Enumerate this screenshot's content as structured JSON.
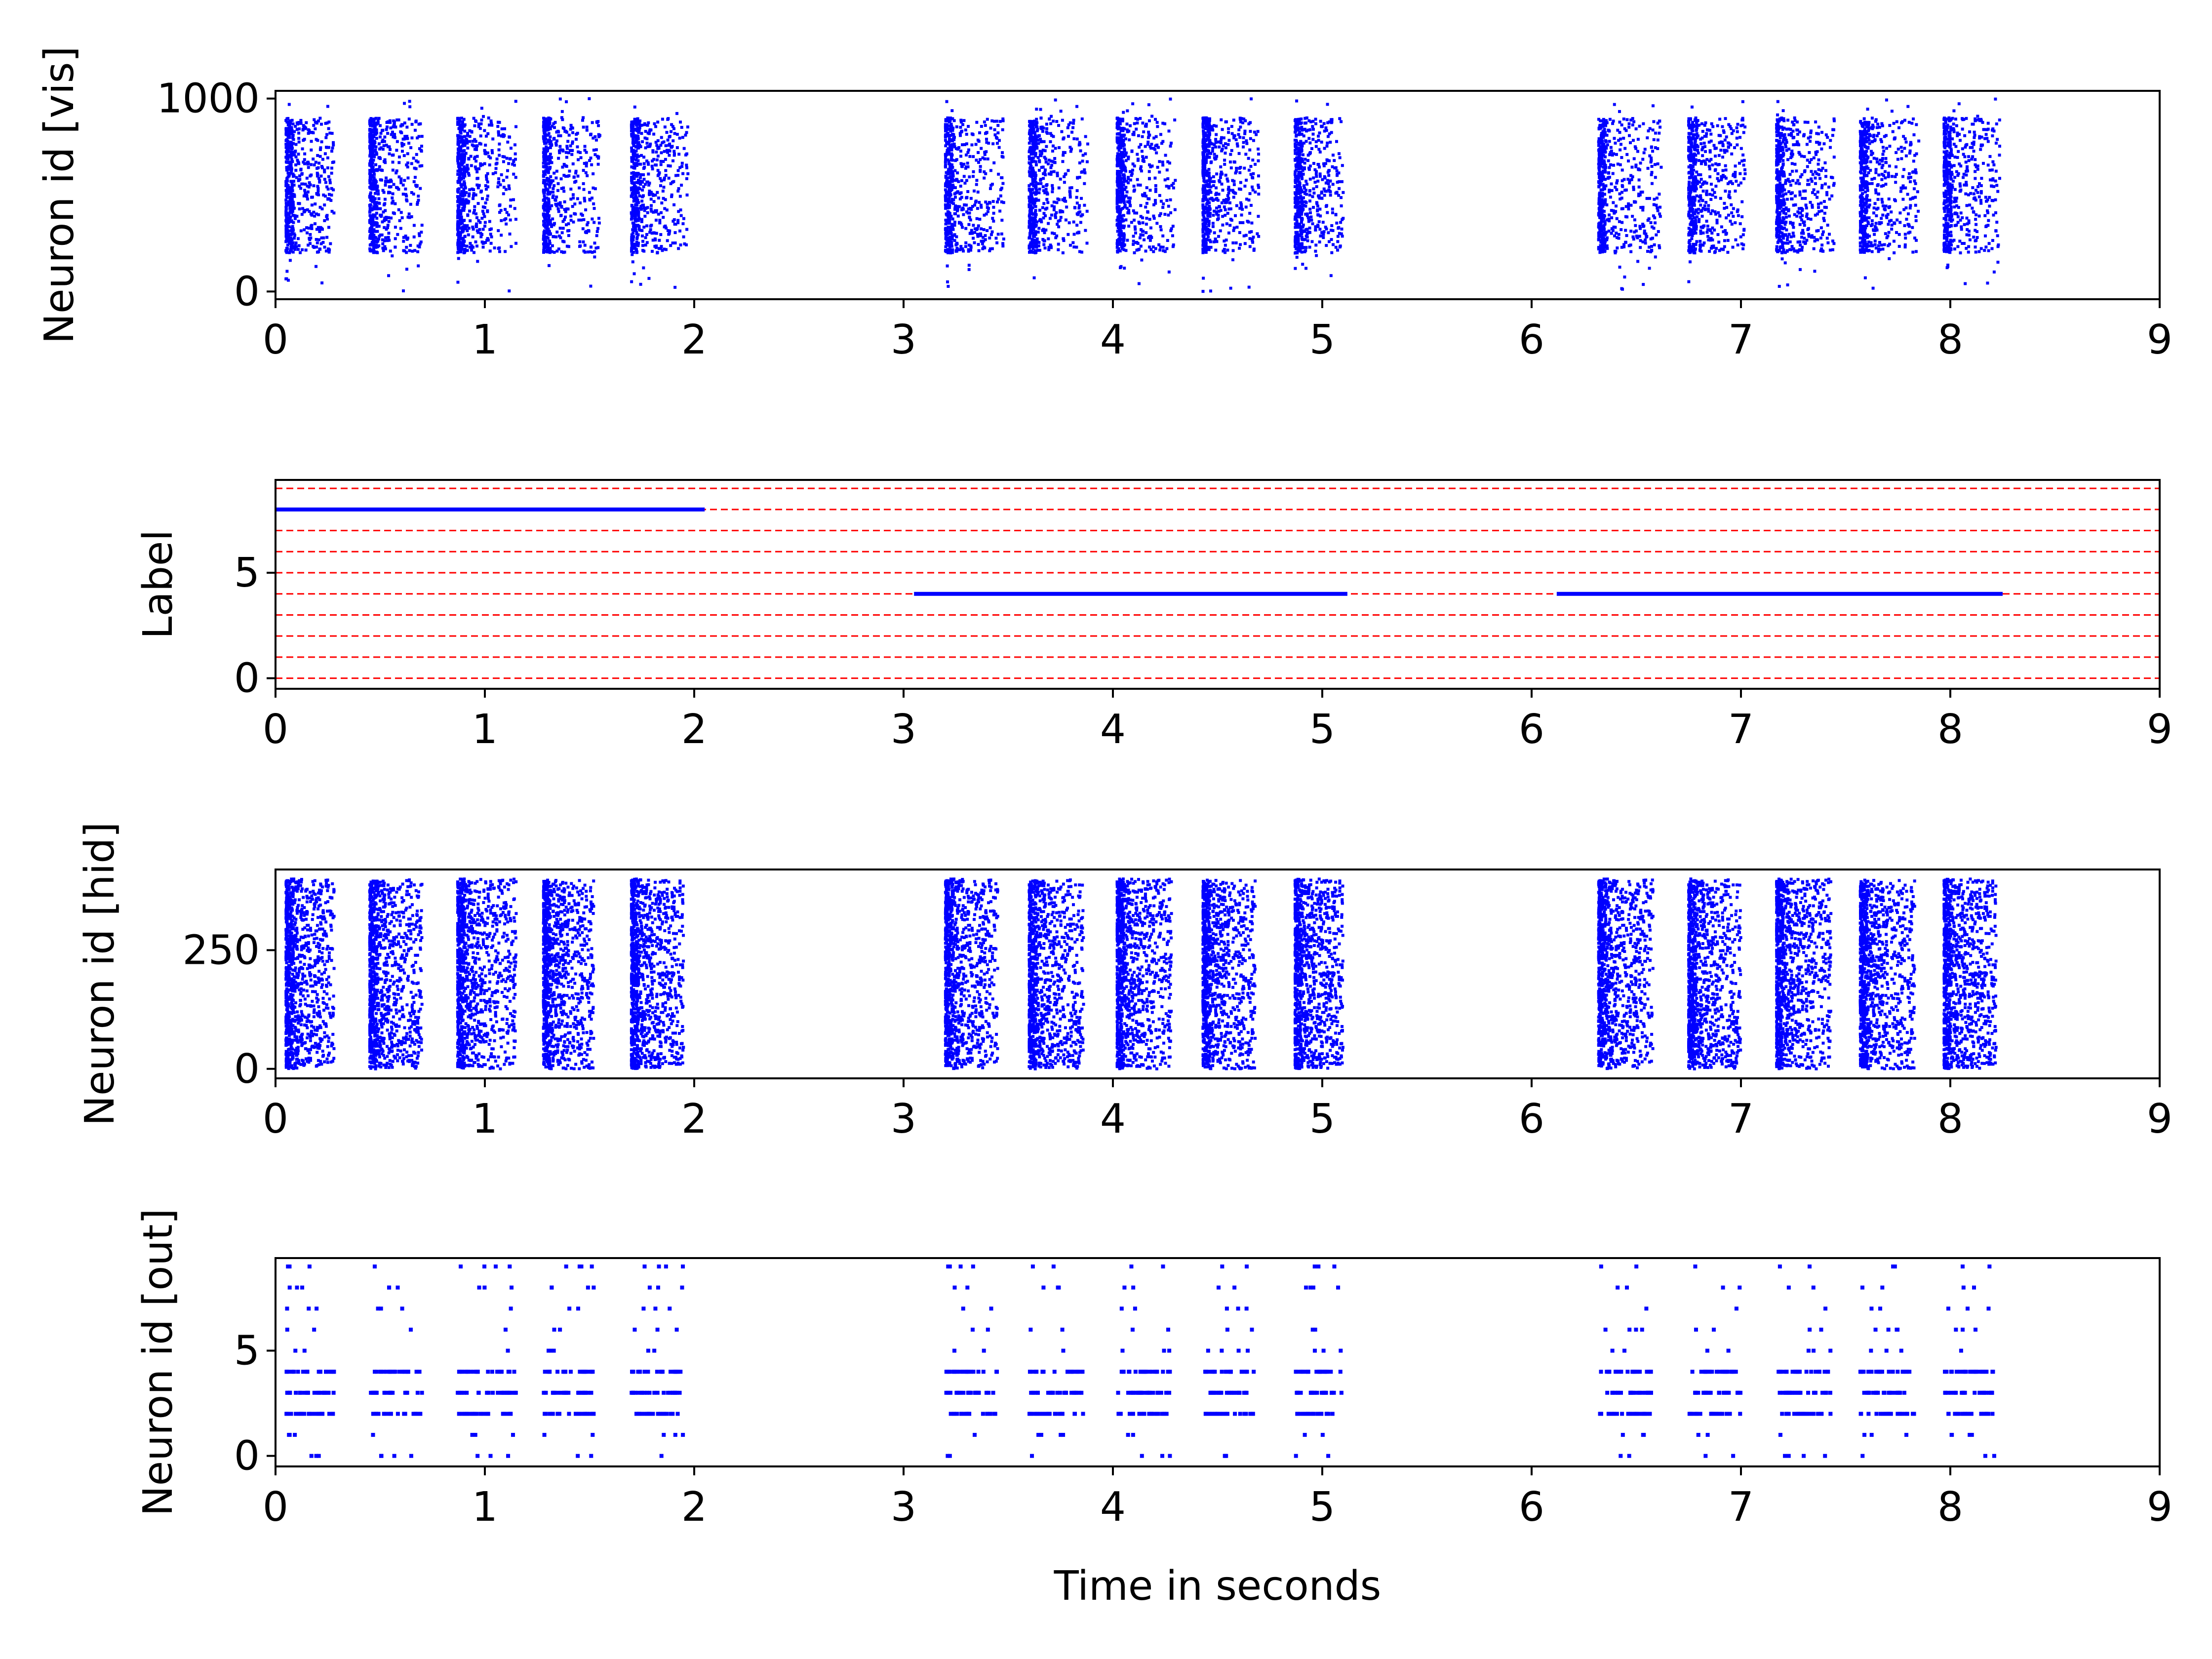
{
  "figure": {
    "xlabel": "Time in seconds",
    "colors": {
      "spike": "#0000ff",
      "label_line": "#0000ff",
      "class_grid": "#ff0000",
      "axes": "#000000",
      "background": "#ffffff"
    }
  },
  "chart_data": [
    {
      "id": "vis",
      "type": "scatter",
      "title": "",
      "ylabel": "Neuron id [vis]",
      "xlim": [
        0,
        9
      ],
      "ylim": [
        -40,
        1040
      ],
      "xticks": [
        0,
        1,
        2,
        3,
        4,
        5,
        6,
        7,
        8,
        9
      ],
      "yticks": [
        0,
        1000
      ],
      "grid": false,
      "marker": "dot",
      "series": [
        {
          "bursts": [
            {
              "start": 0.05,
              "end": 0.28,
              "ymin": 200,
              "ymax": 900
            },
            {
              "start": 0.45,
              "end": 0.7,
              "ymin": 200,
              "ymax": 900
            },
            {
              "start": 0.87,
              "end": 1.15,
              "ymin": 200,
              "ymax": 900
            },
            {
              "start": 1.28,
              "end": 1.55,
              "ymin": 200,
              "ymax": 900
            },
            {
              "start": 1.7,
              "end": 1.97,
              "ymin": 200,
              "ymax": 900
            },
            {
              "start": 3.2,
              "end": 3.48,
              "ymin": 200,
              "ymax": 900
            },
            {
              "start": 3.6,
              "end": 3.88,
              "ymin": 200,
              "ymax": 900
            },
            {
              "start": 4.02,
              "end": 4.3,
              "ymin": 200,
              "ymax": 900
            },
            {
              "start": 4.43,
              "end": 4.7,
              "ymin": 200,
              "ymax": 900
            },
            {
              "start": 4.87,
              "end": 5.1,
              "ymin": 200,
              "ymax": 900
            },
            {
              "start": 6.32,
              "end": 6.62,
              "ymin": 200,
              "ymax": 900
            },
            {
              "start": 6.75,
              "end": 7.02,
              "ymin": 200,
              "ymax": 900
            },
            {
              "start": 7.17,
              "end": 7.45,
              "ymin": 200,
              "ymax": 900
            },
            {
              "start": 7.57,
              "end": 7.85,
              "ymin": 200,
              "ymax": 900
            },
            {
              "start": 7.97,
              "end": 8.24,
              "ymin": 200,
              "ymax": 900
            }
          ]
        }
      ]
    },
    {
      "id": "label",
      "type": "line",
      "title": "",
      "ylabel": "Label",
      "xlim": [
        0,
        9
      ],
      "ylim": [
        -0.5,
        9.4
      ],
      "xticks": [
        0,
        1,
        2,
        3,
        4,
        5,
        6,
        7,
        8,
        9
      ],
      "yticks": [
        0,
        5
      ],
      "grid": false,
      "class_lines": [
        0,
        1,
        2,
        3,
        4,
        5,
        6,
        7,
        8,
        9
      ],
      "segments": [
        {
          "x_start": 0.0,
          "x_end": 2.05,
          "y": 8
        },
        {
          "x_start": 3.05,
          "x_end": 5.12,
          "y": 4
        },
        {
          "x_start": 6.12,
          "x_end": 8.25,
          "y": 4
        }
      ]
    },
    {
      "id": "hid",
      "type": "scatter",
      "title": "",
      "ylabel": "Neuron id [hid]",
      "xlim": [
        0,
        9
      ],
      "ylim": [
        -20,
        420
      ],
      "xticks": [
        0,
        1,
        2,
        3,
        4,
        5,
        6,
        7,
        8,
        9
      ],
      "yticks": [
        0,
        250
      ],
      "grid": false,
      "marker": "dot",
      "series": [
        {
          "bursts": [
            {
              "start": 0.05,
              "end": 0.28,
              "ymin": 0,
              "ymax": 400
            },
            {
              "start": 0.45,
              "end": 0.7,
              "ymin": 0,
              "ymax": 400
            },
            {
              "start": 0.87,
              "end": 1.15,
              "ymin": 0,
              "ymax": 400
            },
            {
              "start": 1.28,
              "end": 1.52,
              "ymin": 0,
              "ymax": 400
            },
            {
              "start": 1.7,
              "end": 1.95,
              "ymin": 0,
              "ymax": 400
            },
            {
              "start": 3.2,
              "end": 3.45,
              "ymin": 0,
              "ymax": 400
            },
            {
              "start": 3.6,
              "end": 3.86,
              "ymin": 0,
              "ymax": 400
            },
            {
              "start": 4.02,
              "end": 4.28,
              "ymin": 0,
              "ymax": 400
            },
            {
              "start": 4.43,
              "end": 4.68,
              "ymin": 0,
              "ymax": 400
            },
            {
              "start": 4.87,
              "end": 5.1,
              "ymin": 0,
              "ymax": 400
            },
            {
              "start": 6.32,
              "end": 6.58,
              "ymin": 0,
              "ymax": 400
            },
            {
              "start": 6.75,
              "end": 7.0,
              "ymin": 0,
              "ymax": 400
            },
            {
              "start": 7.17,
              "end": 7.43,
              "ymin": 0,
              "ymax": 400
            },
            {
              "start": 7.57,
              "end": 7.83,
              "ymin": 0,
              "ymax": 400
            },
            {
              "start": 7.97,
              "end": 8.22,
              "ymin": 0,
              "ymax": 400
            }
          ]
        }
      ]
    },
    {
      "id": "out",
      "type": "scatter",
      "title": "",
      "ylabel": "Neuron id [out]",
      "xlim": [
        0,
        9
      ],
      "ylim": [
        -0.5,
        9.4
      ],
      "xticks": [
        0,
        1,
        2,
        3,
        4,
        5,
        6,
        7,
        8,
        9
      ],
      "yticks": [
        0,
        5
      ],
      "grid": false,
      "marker": "dot",
      "series": [
        {
          "bursts": [
            {
              "start": 0.05,
              "end": 0.28
            },
            {
              "start": 0.45,
              "end": 0.7
            },
            {
              "start": 0.87,
              "end": 1.15
            },
            {
              "start": 1.28,
              "end": 1.52
            },
            {
              "start": 1.7,
              "end": 1.95
            },
            {
              "start": 3.2,
              "end": 3.45
            },
            {
              "start": 3.6,
              "end": 3.86
            },
            {
              "start": 4.02,
              "end": 4.28
            },
            {
              "start": 4.43,
              "end": 4.68
            },
            {
              "start": 4.87,
              "end": 5.1
            },
            {
              "start": 6.32,
              "end": 6.58
            },
            {
              "start": 6.75,
              "end": 7.0
            },
            {
              "start": 7.17,
              "end": 7.43
            },
            {
              "start": 7.57,
              "end": 7.83
            },
            {
              "start": 7.97,
              "end": 8.22
            }
          ],
          "dense_neurons": [
            2,
            3,
            4
          ],
          "sparse_neurons": [
            0,
            1,
            5,
            6,
            7,
            8,
            9
          ]
        }
      ]
    }
  ]
}
